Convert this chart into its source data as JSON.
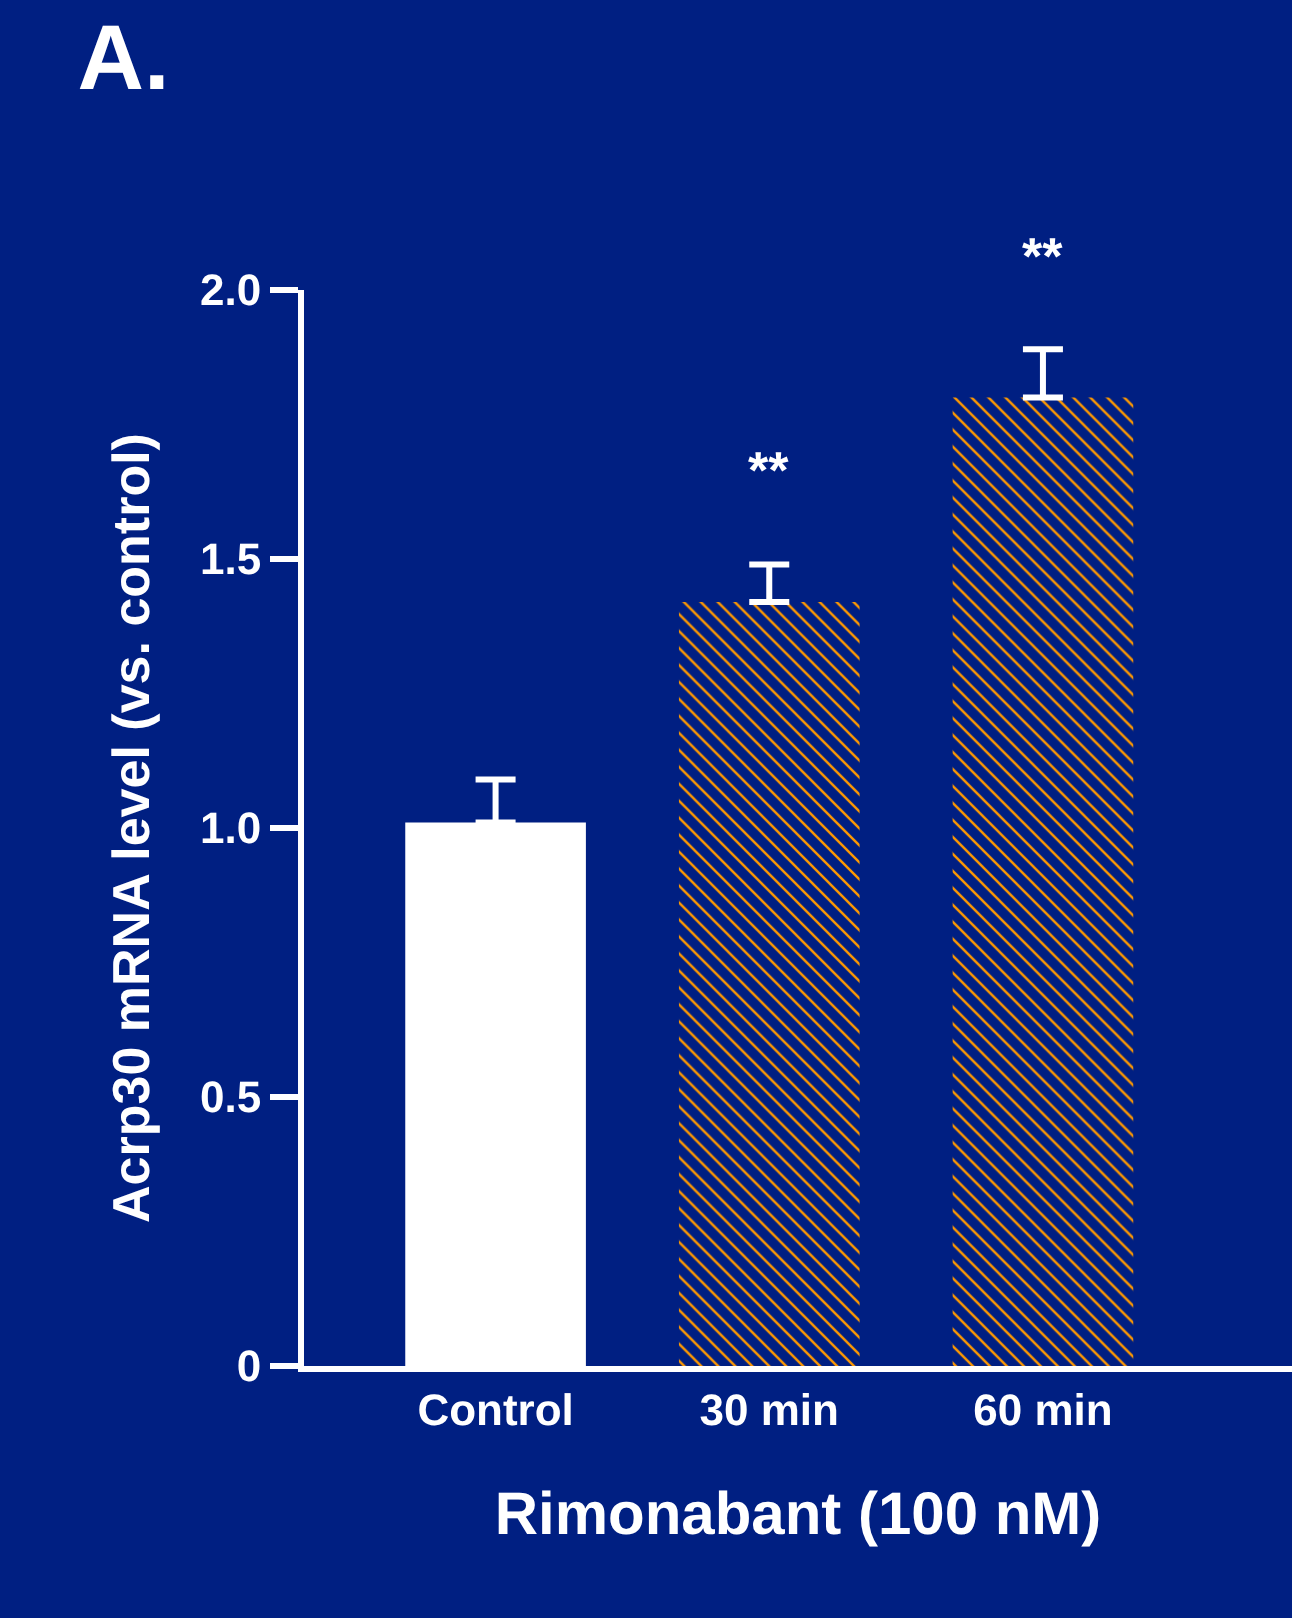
{
  "chart_data": {
    "type": "bar",
    "title": "A.",
    "xlabel": "Rimonabant (100 nM)",
    "ylabel": "Acrp30 mRNA level (vs. control)",
    "categories": [
      "Control",
      "30 min",
      "60 min"
    ],
    "values": [
      1.01,
      1.42,
      1.8
    ],
    "colors": [
      "#ffffff",
      "#ff9900",
      "#ff9900"
    ],
    "errors": [
      [
        1.01,
        1.09
      ],
      [
        1.42,
        1.49
      ],
      [
        1.8,
        1.89
      ]
    ],
    "ylim": [
      0,
      2.0
    ],
    "yticks": [
      {
        "value": 0,
        "label": "0"
      },
      {
        "value": 0.5,
        "label": "0.5"
      },
      {
        "value": 1.0,
        "label": "1.0"
      },
      {
        "value": 1.5,
        "label": "1.5"
      },
      {
        "value": 2.0,
        "label": "2.0"
      }
    ],
    "annotations": [
      {
        "text": "**",
        "x": "30 min",
        "y": 1.49
      },
      {
        "text": "**",
        "x": "60 min",
        "y": 1.89
      }
    ],
    "grid": false
  }
}
